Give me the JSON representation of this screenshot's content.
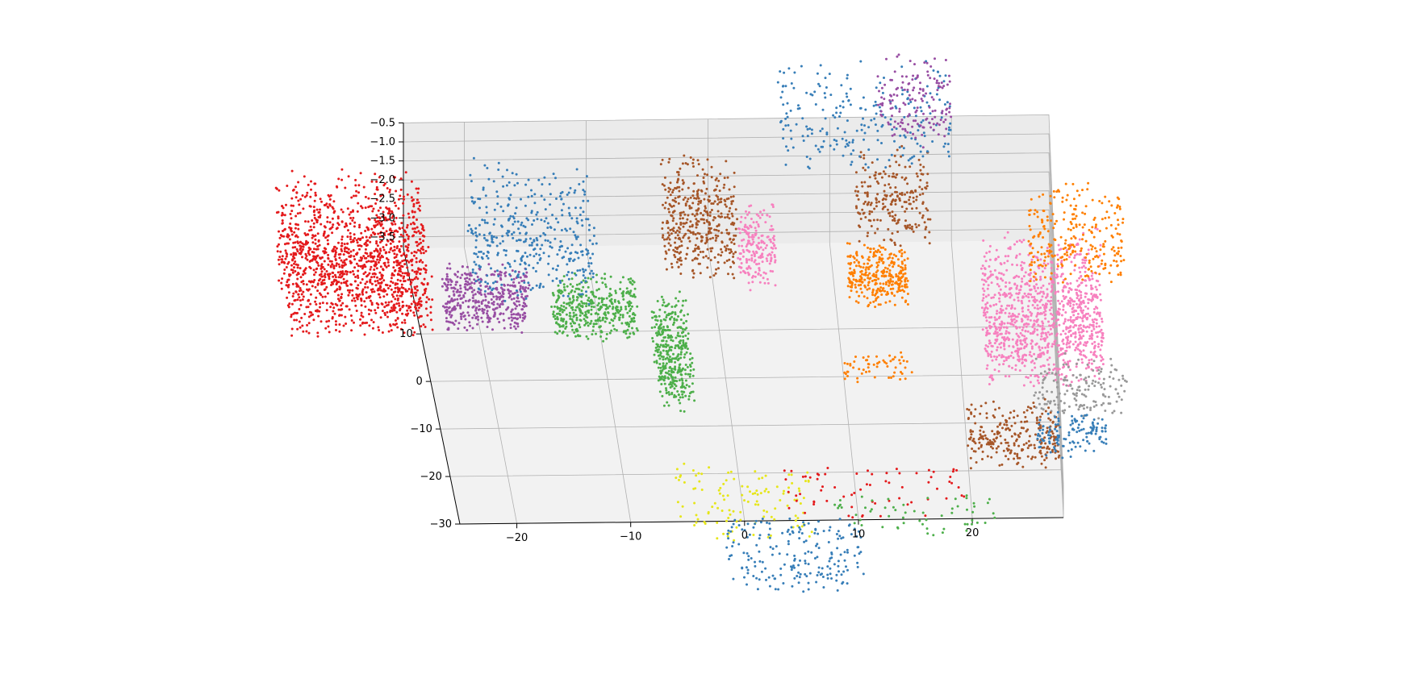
{
  "chart_data": {
    "type": "scatter",
    "projection": "3d",
    "title": "",
    "xlabel": "",
    "ylabel": "",
    "zlabel": "",
    "xlim": [
      -25,
      28
    ],
    "ylim": [
      -30,
      28
    ],
    "zlim": [
      -3.8,
      -0.5
    ],
    "grid": true,
    "legend": "none",
    "x_ticks": [
      -20,
      -10,
      0,
      10,
      20
    ],
    "y_ticks": [
      -30,
      -20,
      -10,
      0,
      10
    ],
    "z_ticks": [
      -3.5,
      -3.0,
      -2.5,
      -2.0,
      -1.5,
      -1.0,
      -0.5
    ],
    "x_tick_labels": [
      "−20",
      "−10",
      "0",
      "10",
      "20"
    ],
    "y_tick_labels": [
      "−30",
      "−20",
      "−10",
      "0",
      "10"
    ],
    "z_tick_labels": [
      "−3.5",
      "−3.0",
      "−2.5",
      "−2.0",
      "−1.5",
      "−1.0",
      "−0.5"
    ],
    "palette": [
      "#e41a1c",
      "#377eb8",
      "#4daf4a",
      "#984ea3",
      "#ff7f00",
      "#e6e61a",
      "#a65628",
      "#f781bf",
      "#999999"
    ],
    "clusters": [
      {
        "color": 0,
        "x": [
          -36,
          -24
        ],
        "y": [
          8,
          26
        ],
        "z": [
          -3.6,
          -1.2
        ],
        "n": 1400
      },
      {
        "color": 3,
        "x": [
          -23,
          -16
        ],
        "y": [
          8,
          13
        ],
        "z": [
          -3.5,
          -1.5
        ],
        "n": 420
      },
      {
        "color": 2,
        "x": [
          -14,
          -7
        ],
        "y": [
          6,
          12
        ],
        "z": [
          -3.4,
          -1.8
        ],
        "n": 420
      },
      {
        "color": 2,
        "x": [
          -6,
          -3
        ],
        "y": [
          -8,
          6
        ],
        "z": [
          -3.6,
          -1.0
        ],
        "n": 380
      },
      {
        "color": 1,
        "x": [
          -20,
          -10
        ],
        "y": [
          14,
          26
        ],
        "z": [
          -3.6,
          -1.0
        ],
        "n": 400
      },
      {
        "color": 6,
        "x": [
          -4,
          2
        ],
        "y": [
          16,
          26
        ],
        "z": [
          -3.2,
          -0.8
        ],
        "n": 420
      },
      {
        "color": 7,
        "x": [
          2,
          5
        ],
        "y": [
          13,
          20
        ],
        "z": [
          -3.0,
          -1.0
        ],
        "n": 200
      },
      {
        "color": 4,
        "x": [
          11,
          16
        ],
        "y": [
          12,
          18
        ],
        "z": [
          -3.4,
          -2.0
        ],
        "n": 320
      },
      {
        "color": 6,
        "x": [
          12,
          18
        ],
        "y": [
          18,
          26
        ],
        "z": [
          -2.4,
          -0.8
        ],
        "n": 230
      },
      {
        "color": 7,
        "x": [
          22,
          32
        ],
        "y": [
          -4,
          14
        ],
        "z": [
          -3.6,
          -0.8
        ],
        "n": 1100
      },
      {
        "color": 4,
        "x": [
          26,
          34
        ],
        "y": [
          10,
          22
        ],
        "z": [
          -2.2,
          -1.0
        ],
        "n": 260
      },
      {
        "color": 8,
        "x": [
          26,
          34
        ],
        "y": [
          -12,
          -4
        ],
        "z": [
          -3.2,
          -1.5
        ],
        "n": 160
      },
      {
        "color": 6,
        "x": [
          20,
          28
        ],
        "y": [
          -22,
          -12
        ],
        "z": [
          -3.0,
          -1.6
        ],
        "n": 260
      },
      {
        "color": 1,
        "x": [
          26,
          32
        ],
        "y": [
          -20,
          -14
        ],
        "z": [
          -3.0,
          -1.6
        ],
        "n": 130
      },
      {
        "color": 1,
        "x": [
          6,
          20
        ],
        "y": [
          24,
          34
        ],
        "z": [
          -1.2,
          -0.3
        ],
        "n": 240
      },
      {
        "color": 3,
        "x": [
          14,
          20
        ],
        "y": [
          26,
          34
        ],
        "z": [
          -1.0,
          -0.2
        ],
        "n": 150
      },
      {
        "color": 4,
        "x": [
          10,
          16
        ],
        "y": [
          -2,
          2
        ],
        "z": [
          -3.6,
          -3.0
        ],
        "n": 60
      },
      {
        "color": 5,
        "x": [
          -6,
          6
        ],
        "y": [
          -36,
          -24
        ],
        "z": [
          -3.2,
          -1.0
        ],
        "n": 120
      },
      {
        "color": 1,
        "x": [
          -2,
          10
        ],
        "y": [
          -46,
          -32
        ],
        "z": [
          -3.6,
          -1.4
        ],
        "n": 200
      },
      {
        "color": 0,
        "x": [
          4,
          20
        ],
        "y": [
          -30,
          -20
        ],
        "z": [
          -3.6,
          -3.3
        ],
        "n": 70
      },
      {
        "color": 2,
        "x": [
          8,
          22
        ],
        "y": [
          -34,
          -26
        ],
        "z": [
          -3.6,
          -3.3
        ],
        "n": 60
      }
    ]
  }
}
